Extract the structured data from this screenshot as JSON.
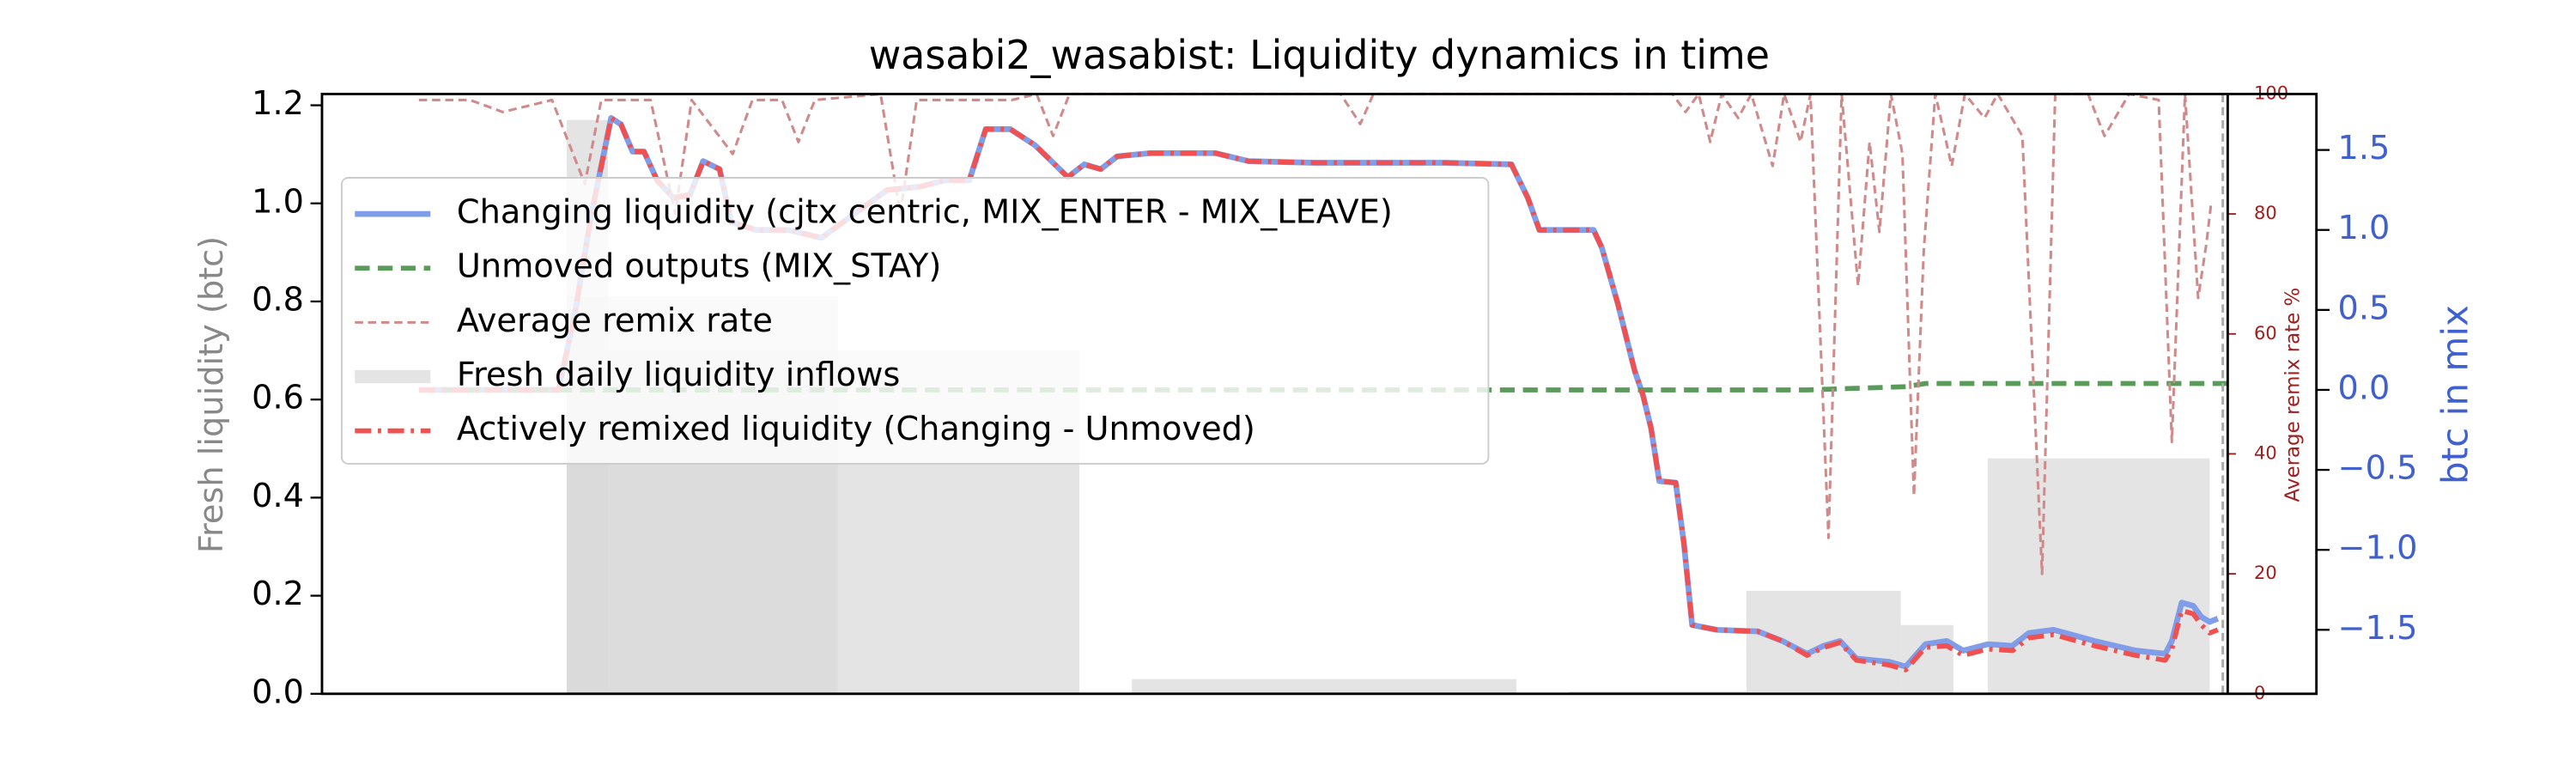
{
  "chart_data": {
    "type": "line",
    "title": "wasabi2_wasabist: Liquidity dynamics in time",
    "ylabel": "Fresh liquidity (btc)",
    "y2label": "btc in mix",
    "y3label": "Average remix rate %",
    "xlim": [
      0,
      1214
    ],
    "ylim": [
      0,
      1.223
    ],
    "yticks": [
      {
        "value": 0,
        "label": "0.0"
      },
      {
        "value": 0.2,
        "label": "0.2"
      },
      {
        "value": 0.4,
        "label": "0.4"
      },
      {
        "value": 0.6,
        "label": "0.6"
      },
      {
        "value": 0.8,
        "label": "0.8"
      },
      {
        "value": 1.0,
        "label": "1.0"
      },
      {
        "value": 1.2,
        "label": "1.2"
      }
    ],
    "y2lim": [
      -1.9,
      1.85
    ],
    "y2ticks": [
      {
        "value": -1.5,
        "label": "−1.5"
      },
      {
        "value": -1.0,
        "label": "−1.0"
      },
      {
        "value": -0.5,
        "label": "−0.5"
      },
      {
        "value": 0,
        "label": "0.0"
      },
      {
        "value": 0.5,
        "label": "0.5"
      },
      {
        "value": 1.0,
        "label": "1.0"
      },
      {
        "value": 1.5,
        "label": "1.5"
      }
    ],
    "y3lim": [
      0,
      100
    ],
    "y3ticks": [
      0,
      20,
      40,
      60,
      80,
      100
    ],
    "legend": "upper left",
    "series": [
      {
        "name": "Changing liquidity (cjtx centric, MIX_ENTER - MIX_LEAVE)",
        "type": "line",
        "color": "#7f9de8",
        "style": "solid",
        "axis": "y2",
        "x": [
          59,
          144,
          154,
          164,
          176,
          182,
          189,
          196,
          204,
          214,
          224,
          232,
          242,
          249,
          264,
          284,
          304,
          324,
          344,
          364,
          379,
          394,
          404,
          419,
          434,
          444,
          454,
          464,
          474,
          484,
          504,
          544,
          564,
          604,
          684,
          724,
          734,
          741,
          774,
          779,
          789,
          799,
          804,
          809,
          814,
          824,
          829,
          834,
          849,
          874,
          889,
          904,
          914,
          924,
          934,
          954,
          964,
          976,
          989,
          999,
          1014,
          1029,
          1039,
          1054,
          1079,
          1104,
          1122,
          1126,
          1132,
          1139,
          1144,
          1149,
          1154
        ],
        "values": [
          0,
          0,
          0.48,
          1.1,
          1.7,
          1.66,
          1.49,
          1.49,
          1.31,
          1.2,
          1.22,
          1.43,
          1.38,
          1.05,
          1.0,
          1.0,
          0.95,
          1.1,
          1.25,
          1.27,
          1.31,
          1.31,
          1.63,
          1.63,
          1.53,
          1.43,
          1.33,
          1.41,
          1.38,
          1.46,
          1.48,
          1.48,
          1.43,
          1.42,
          1.42,
          1.41,
          1.2,
          1.0,
          1.0,
          0.89,
          0.53,
          0.12,
          -0.03,
          -0.24,
          -0.57,
          -0.58,
          -0.96,
          -1.47,
          -1.5,
          -1.51,
          -1.57,
          -1.65,
          -1.6,
          -1.57,
          -1.68,
          -1.7,
          -1.73,
          -1.59,
          -1.57,
          -1.63,
          -1.59,
          -1.6,
          -1.52,
          -1.5,
          -1.57,
          -1.63,
          -1.65,
          -1.57,
          -1.33,
          -1.35,
          -1.42,
          -1.45,
          -1.43
        ]
      },
      {
        "name": "Unmoved outputs (MIX_STAY)",
        "type": "line",
        "color": "#5a9a5a",
        "style": "dashed",
        "axis": "y2",
        "x": [
          59,
          904,
          934,
          964,
          976,
          1054,
          1160
        ],
        "values": [
          0,
          0,
          0.01,
          0.02,
          0.04,
          0.04,
          0.04
        ]
      },
      {
        "name": "Average remix rate",
        "type": "line",
        "color": "#d08a8a",
        "style": "thin-dashed",
        "axis": "y3",
        "x": [
          59,
          90,
          110,
          140,
          160,
          170,
          200,
          215,
          225,
          250,
          262,
          280,
          290,
          300,
          340,
          352,
          362,
          420,
          435,
          445,
          455,
          620,
          632,
          640,
          822,
          830,
          838,
          845,
          852,
          862,
          870,
          883,
          890,
          900,
          906,
          917,
          925,
          935,
          942,
          948,
          955,
          962,
          969,
          975,
          982,
          992,
          1000,
          1012,
          1020,
          1035,
          1047,
          1055,
          1075,
          1085,
          1100,
          1118,
          1126,
          1134,
          1142,
          1147,
          1150
        ],
        "values": [
          99,
          99,
          97,
          99,
          85,
          99,
          99,
          80,
          99,
          90,
          99,
          99,
          92,
          99,
          100,
          80,
          99,
          99,
          100,
          93,
          100,
          100,
          95,
          100,
          100,
          97,
          100,
          92,
          100,
          96,
          100,
          88,
          100,
          92,
          100,
          26,
          100,
          68,
          92,
          77,
          100,
          90,
          33,
          74,
          100,
          88,
          100,
          96,
          100,
          93,
          20,
          100,
          100,
          93,
          100,
          99,
          42,
          100,
          66,
          75,
          82
        ]
      },
      {
        "name": "Fresh daily liquidity inflows",
        "type": "bar",
        "color": "#d9d9d9",
        "axis": "y",
        "x_start": [
          149,
          149,
          149,
          493,
          759,
          867,
          961,
          1014
        ],
        "x_end": [
          174,
          314,
          461,
          727,
          867,
          961,
          993,
          1149
        ],
        "values": [
          1.17,
          0.81,
          0.7,
          0.03,
          0.005,
          0.21,
          0.14,
          0.48
        ]
      },
      {
        "name": "Actively remixed liquidity (Changing - Unmoved)",
        "type": "line",
        "color": "#f05050",
        "style": "dashdot",
        "axis": "y2",
        "x": [
          59,
          144,
          154,
          164,
          176,
          182,
          189,
          196,
          204,
          214,
          224,
          232,
          242,
          249,
          264,
          284,
          304,
          324,
          344,
          364,
          379,
          394,
          404,
          419,
          434,
          444,
          454,
          464,
          474,
          484,
          504,
          544,
          564,
          604,
          684,
          724,
          734,
          741,
          774,
          779,
          789,
          799,
          804,
          809,
          814,
          824,
          829,
          834,
          849,
          874,
          889,
          904,
          914,
          924,
          934,
          954,
          964,
          976,
          989,
          999,
          1014,
          1029,
          1039,
          1054,
          1079,
          1104,
          1122,
          1126,
          1132,
          1139,
          1144,
          1149,
          1154
        ],
        "values": [
          0,
          0,
          0.48,
          1.1,
          1.7,
          1.66,
          1.49,
          1.49,
          1.31,
          1.2,
          1.22,
          1.43,
          1.38,
          1.05,
          1.0,
          1.0,
          0.95,
          1.1,
          1.25,
          1.27,
          1.31,
          1.31,
          1.63,
          1.63,
          1.53,
          1.43,
          1.33,
          1.41,
          1.38,
          1.46,
          1.48,
          1.48,
          1.43,
          1.42,
          1.42,
          1.41,
          1.2,
          1.0,
          1.0,
          0.89,
          0.53,
          0.12,
          -0.03,
          -0.24,
          -0.57,
          -0.58,
          -0.96,
          -1.47,
          -1.5,
          -1.51,
          -1.57,
          -1.66,
          -1.61,
          -1.58,
          -1.69,
          -1.72,
          -1.75,
          -1.61,
          -1.6,
          -1.66,
          -1.62,
          -1.63,
          -1.55,
          -1.53,
          -1.6,
          -1.66,
          -1.69,
          -1.62,
          -1.38,
          -1.4,
          -1.47,
          -1.52,
          -1.5
        ]
      }
    ]
  }
}
